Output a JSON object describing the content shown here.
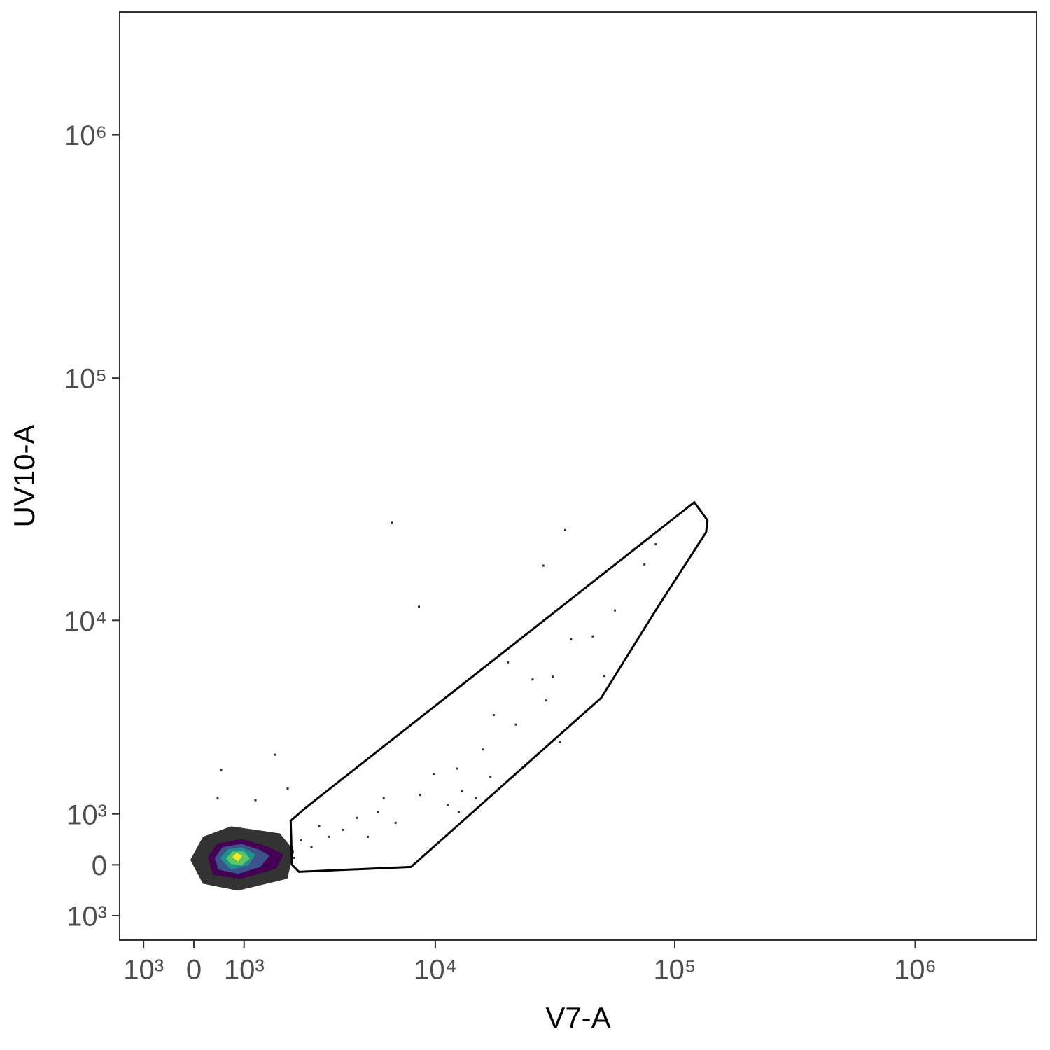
{
  "chart_data": {
    "type": "scatter",
    "x_label": "V7-A",
    "y_label": "UV10-A",
    "xscale": "biexponential",
    "yscale": "biexponential",
    "xlim": [
      -1543,
      3200000
    ],
    "ylim": [
      -1550,
      3200000
    ],
    "xticks": [
      {
        "value": -1000,
        "label": "10³"
      },
      0,
      {
        "value": 1000,
        "label": "10³"
      },
      {
        "value": 10000,
        "label": "10⁴"
      },
      {
        "value": 100000,
        "label": "10⁵"
      },
      {
        "value": 1000000,
        "label": "10⁶"
      }
    ],
    "yticks": [
      {
        "value": -1000,
        "label": "10³"
      },
      0,
      {
        "value": 1000,
        "label": "10³"
      },
      {
        "value": 10000,
        "label": "10⁴"
      },
      {
        "value": 100000,
        "label": "10⁵"
      },
      {
        "value": 1000000,
        "label": "10⁶"
      }
    ],
    "points": {
      "color": "#333333",
      "x": [
        6540,
        35000,
        8520,
        28400,
        83400,
        74800,
        56400,
        45600,
        37000,
        20200,
        31200,
        25600,
        50800,
        29200,
        33400,
        21800,
        17600,
        15900,
        12400,
        13000,
        11300,
        8620,
        9880,
        6760,
        5660,
        4560,
        3940,
        3380,
        3020,
        2760,
        2440,
        1720,
        530,
        460,
        1250,
        2050,
        1940,
        2230,
        1840,
        40,
        310,
        872,
        1330,
        1760,
        12560,
        14860,
        17060,
        23800,
        6000,
        5100
      ],
      "y": [
        25400,
        23700,
        11400,
        16900,
        20700,
        17100,
        11000,
        8560,
        8320,
        6640,
        5760,
        5600,
        5800,
        4520,
        2880,
        3500,
        3880,
        2640,
        2080,
        1510,
        1190,
        1420,
        1940,
        816,
        1040,
        918,
        674,
        536,
        744,
        334,
        468,
        2480,
        2040,
        1340,
        1300,
        1570,
        264,
        132,
        -198,
        92,
        -264,
        -442,
        -360,
        -66,
        1040,
        1340,
        1850,
        2140,
        1340,
        536
      ]
    },
    "density_contours": [
      {
        "color": "#333333",
        "x": [
          -67,
          174,
          726,
          1840,
          2230,
          2040,
          872,
          174
        ],
        "y": [
          93,
          536,
          744,
          604,
          265,
          -265,
          -494,
          -360
        ]
      },
      {
        "color": "#440154",
        "x": [
          268,
          446,
          944,
          1500,
          1940,
          1760,
          944,
          378
        ],
        "y": [
          132,
          400,
          494,
          360,
          198,
          -66,
          -265,
          -198
        ]
      },
      {
        "color": "#3b528b",
        "x": [
          404,
          556,
          944,
          1362,
          1582,
          1362,
          872,
          474
        ],
        "y": [
          132,
          334,
          400,
          278,
          172,
          -40,
          -172,
          -92
        ]
      },
      {
        "color": "#21908c",
        "x": [
          510,
          656,
          944,
          1252,
          1094,
          726
        ],
        "y": [
          120,
          292,
          334,
          198,
          -14,
          -92
        ]
      },
      {
        "color": "#5dc863",
        "x": [
          628,
          754,
          990,
          1126,
          944,
          726
        ],
        "y": [
          120,
          252,
          252,
          120,
          -14,
          14
        ]
      },
      {
        "color": "#fde725",
        "x": [
          754,
          842,
          960,
          872
        ],
        "y": [
          146,
          226,
          172,
          66
        ]
      }
    ],
    "gate": {
      "color": "#000000",
      "x": [
        2132,
        2590,
        120600,
        136800,
        135000,
        85600,
        49400,
        7880,
        2370,
        2170
      ],
      "y": [
        858,
        1140,
        30860,
        25980,
        23200,
        11500,
        4640,
        -40,
        -132,
        0
      ]
    }
  }
}
